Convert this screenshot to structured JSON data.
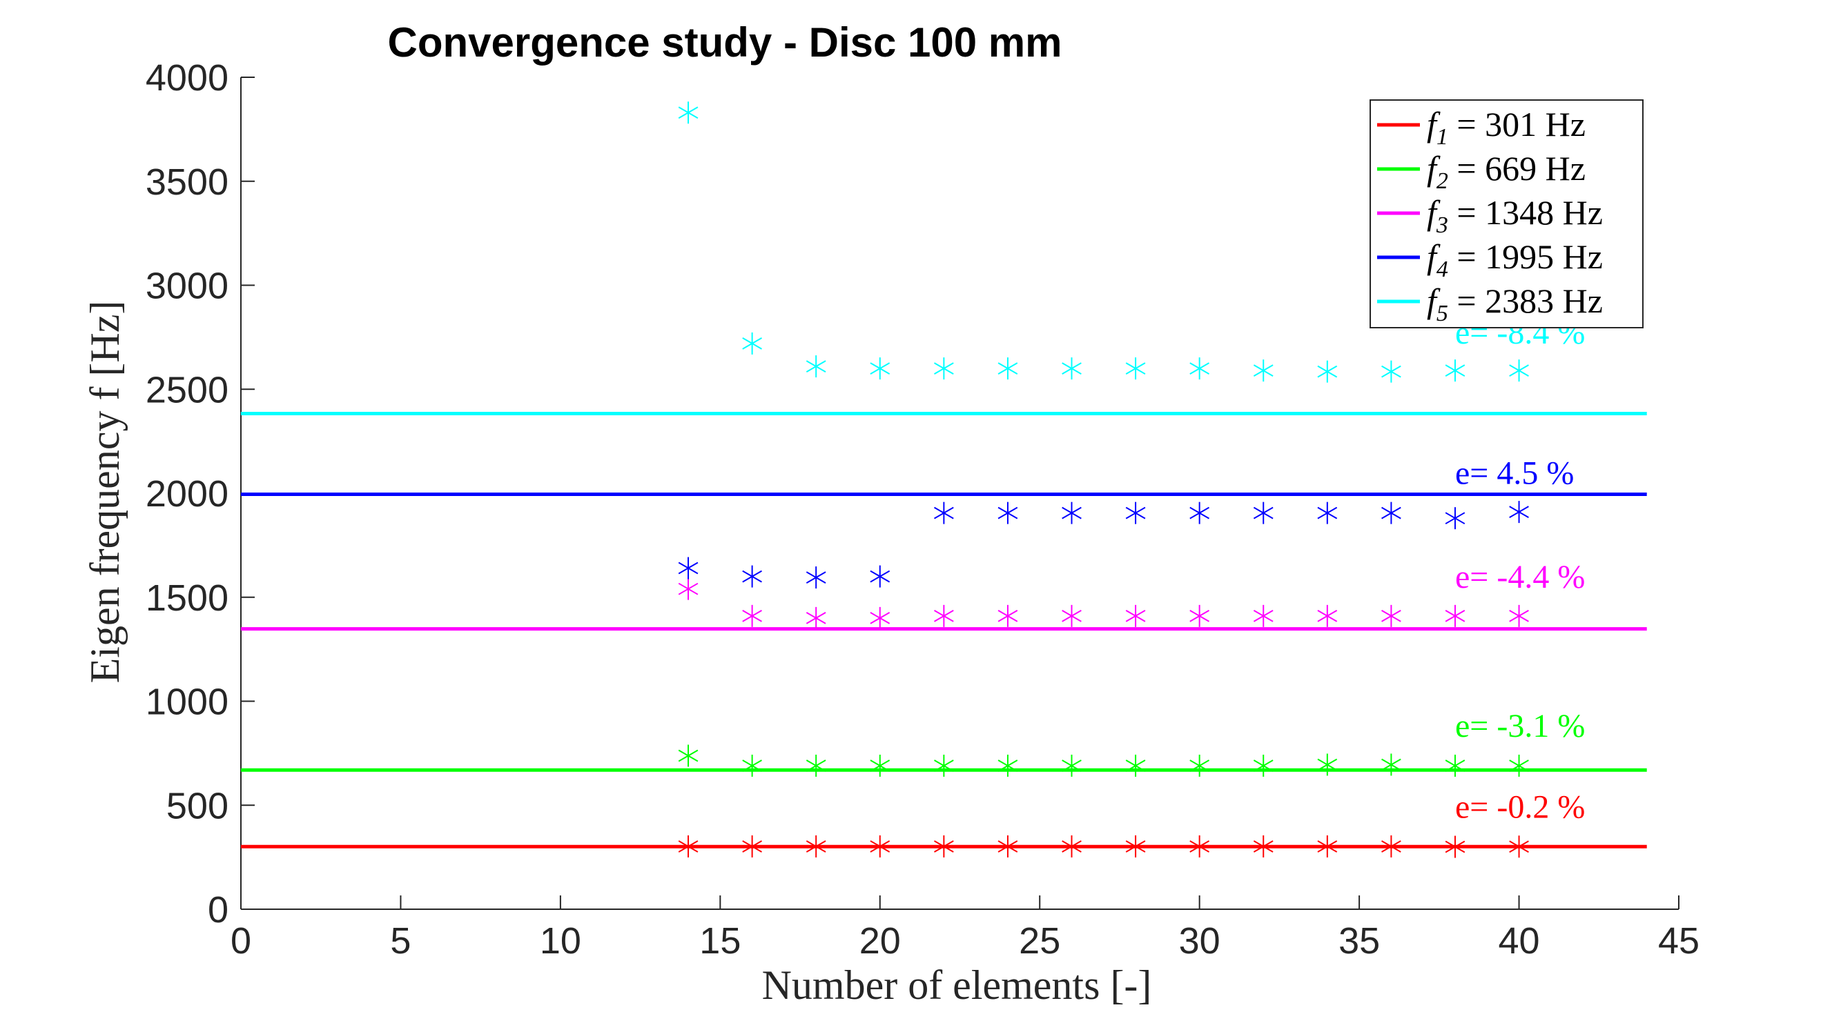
{
  "chart_data": {
    "type": "scatter",
    "title": "Convergence study - Disc 100 mm",
    "xlabel": "Number of elements [-]",
    "ylabel": "Eigen frequency f [Hz]",
    "xlim": [
      0,
      45
    ],
    "ylim": [
      0,
      4000
    ],
    "xticks": [
      0,
      5,
      10,
      15,
      20,
      25,
      30,
      35,
      40,
      45
    ],
    "yticks": [
      0,
      500,
      1000,
      1500,
      2000,
      2500,
      3000,
      3500,
      4000
    ],
    "grid": false,
    "legend_position": "top-right",
    "reference_lines": [
      {
        "label": "f1 = 301 Hz",
        "legend_sub": "1",
        "legend_value": " = 301 Hz",
        "value": 301,
        "color": "#ff0000",
        "x_range": [
          0,
          44
        ]
      },
      {
        "label": "f2 = 669 Hz",
        "legend_sub": "2",
        "legend_value": " = 669 Hz",
        "value": 669,
        "color": "#00ff00",
        "x_range": [
          0,
          44
        ]
      },
      {
        "label": "f3 = 1348 Hz",
        "legend_sub": "3",
        "legend_value": " = 1348 Hz",
        "value": 1348,
        "color": "#ff00ff",
        "x_range": [
          0,
          44
        ]
      },
      {
        "label": "f4 = 1995 Hz",
        "legend_sub": "4",
        "legend_value": " = 1995 Hz",
        "value": 1995,
        "color": "#0000ff",
        "x_range": [
          0,
          44
        ]
      },
      {
        "label": "f5 = 2383 Hz",
        "legend_sub": "5",
        "legend_value": " = 2383 Hz",
        "value": 2383,
        "color": "#00ffff",
        "x_range": [
          0,
          44
        ]
      }
    ],
    "series": [
      {
        "color": "#ff0000",
        "marker": "asterisk",
        "x": [
          14,
          16,
          18,
          20,
          22,
          24,
          26,
          28,
          30,
          32,
          34,
          36,
          38,
          40
        ],
        "y": [
          302,
          302,
          302,
          302,
          302,
          302,
          302,
          302,
          302,
          302,
          302,
          302,
          300,
          301
        ]
      },
      {
        "color": "#00ff00",
        "marker": "asterisk",
        "x": [
          14,
          16,
          18,
          20,
          22,
          24,
          26,
          28,
          30,
          32,
          34,
          36,
          38,
          40
        ],
        "y": [
          738,
          690,
          690,
          690,
          690,
          690,
          690,
          690,
          690,
          690,
          695,
          695,
          690,
          690
        ]
      },
      {
        "color": "#ff00ff",
        "marker": "asterisk",
        "x": [
          14,
          16,
          18,
          20,
          22,
          24,
          26,
          28,
          30,
          32,
          34,
          36,
          38,
          40
        ],
        "y": [
          1540,
          1410,
          1400,
          1400,
          1410,
          1410,
          1410,
          1410,
          1410,
          1410,
          1410,
          1410,
          1410,
          1410
        ]
      },
      {
        "color": "#0000ff",
        "marker": "asterisk",
        "x": [
          14,
          16,
          18,
          20,
          22,
          24,
          26,
          28,
          30,
          32,
          34,
          36,
          38,
          40
        ],
        "y": [
          1640,
          1600,
          1595,
          1600,
          1905,
          1905,
          1905,
          1905,
          1905,
          1905,
          1905,
          1905,
          1880,
          1910
        ]
      },
      {
        "color": "#00ffff",
        "marker": "asterisk",
        "x": [
          14,
          16,
          18,
          20,
          22,
          24,
          26,
          28,
          30,
          32,
          34,
          36,
          38,
          40
        ],
        "y": [
          3830,
          2720,
          2610,
          2600,
          2600,
          2600,
          2600,
          2600,
          2600,
          2590,
          2585,
          2585,
          2590,
          2590
        ]
      }
    ],
    "annotations": [
      {
        "text": "e= -0.2 %",
        "x": 38,
        "y": 440,
        "color": "#ff0000"
      },
      {
        "text": "e= -3.1 %",
        "x": 38,
        "y": 830,
        "color": "#00ff00"
      },
      {
        "text": "e= -4.4 %",
        "x": 38,
        "y": 1545,
        "color": "#ff00ff"
      },
      {
        "text": "e= 4.5 %",
        "x": 38,
        "y": 2045,
        "color": "#0000ff"
      },
      {
        "text": "e= -8.4 %",
        "x": 38,
        "y": 2720,
        "color": "#00ffff"
      }
    ]
  }
}
